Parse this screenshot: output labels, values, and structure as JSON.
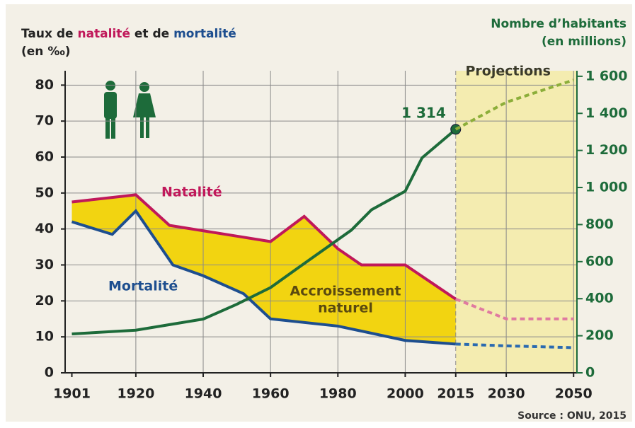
{
  "chart_data": {
    "type": "line",
    "ylabel": [
      {
        "text": "Taux de ",
        "color": "#222222"
      },
      {
        "text": "natalité",
        "color": "#c0185a"
      },
      {
        "text": " et de ",
        "color": "#222222"
      },
      {
        "text": "mortalité",
        "color": "#1d4e8f"
      }
    ],
    "ylabel_unit": "(en ‰)",
    "y2label": [
      "Nombre d’habitants",
      "(en millions)"
    ],
    "xlim": [
      1899,
      2051
    ],
    "xticks": [
      1901,
      1920,
      1940,
      1960,
      1980,
      2000,
      2015,
      2030,
      2050
    ],
    "ylim": [
      0,
      84
    ],
    "yticks": [
      0,
      10,
      20,
      30,
      40,
      50,
      60,
      70,
      80
    ],
    "y2lim": [
      0,
      1630
    ],
    "y2ticks": [
      0,
      200,
      400,
      600,
      800,
      {
        "value": 1000,
        "label": "1 000"
      },
      {
        "value": 1200,
        "label": "1 200"
      },
      {
        "value": 1400,
        "label": "1 400"
      },
      {
        "value": 1600,
        "label": "1 600"
      }
    ],
    "grid": true,
    "projection_from": 2015,
    "projection_label": "Projections",
    "area_label": [
      "Accroissement",
      "naturel"
    ],
    "area_color": "#f2d411",
    "series": [
      {
        "name": "Natalité",
        "color": "#c0185a",
        "x": [
          1901,
          1920,
          1930,
          1950,
          1960,
          1970,
          1980,
          1987,
          2000,
          2015
        ],
        "values": [
          47.5,
          49.5,
          41,
          38,
          36.5,
          43.5,
          34.5,
          30,
          30,
          20.5
        ]
      },
      {
        "color": "#e07aa0",
        "dashed": true,
        "x": [
          2015,
          2030,
          2050
        ],
        "values": [
          20.5,
          15,
          15
        ]
      },
      {
        "name": "Mortalité",
        "color": "#1d4e8f",
        "x": [
          1901,
          1913,
          1920,
          1931,
          1940,
          1952,
          1960,
          1980,
          2000,
          2015
        ],
        "values": [
          42,
          38.5,
          45,
          30,
          27,
          22,
          15,
          13,
          9,
          8
        ]
      },
      {
        "color": "#2a6ab0",
        "dashed": true,
        "x": [
          2015,
          2030,
          2050
        ],
        "values": [
          8,
          7.5,
          7
        ]
      },
      {
        "color": "#1d6b3a",
        "axis": "y2",
        "x": [
          1901,
          1920,
          1940,
          1950,
          1960,
          1970,
          1984,
          1990,
          2000,
          2005,
          2015
        ],
        "values": [
          210,
          230,
          290,
          370,
          460,
          590,
          770,
          880,
          980,
          1160,
          1314
        ],
        "value_labels": [
          null,
          null,
          null,
          null,
          null,
          null,
          null,
          null,
          null,
          null,
          "1 314"
        ]
      },
      {
        "color": "#8cae3a",
        "axis": "y2",
        "dashed": true,
        "x": [
          2015,
          2030,
          2050
        ],
        "values": [
          1314,
          1460,
          1580
        ]
      }
    ],
    "source": "Source : ONU, 2015"
  }
}
